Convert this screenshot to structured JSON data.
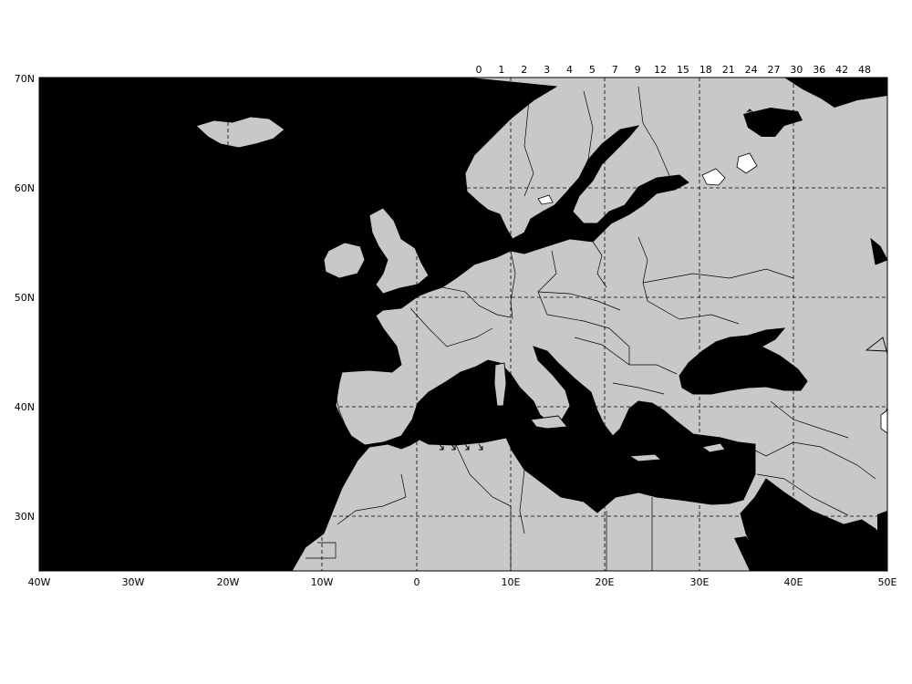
{
  "map": {
    "lat_labels": [
      "70N",
      "60N",
      "50N",
      "40N",
      "30N"
    ],
    "lon_labels": [
      "40W",
      "30W",
      "20W",
      "10W",
      "0",
      "10E",
      "20E",
      "30E",
      "40E",
      "50E"
    ],
    "scale_labels": [
      "0",
      "1",
      "2",
      "3",
      "4",
      "5",
      "7",
      "9",
      "12",
      "15",
      "18",
      "21",
      "24",
      "27",
      "30",
      "36",
      "42",
      "48"
    ],
    "colors": {
      "ocean": "#000000",
      "land": "#c8c8c8",
      "lake": "#ffffff",
      "background": "#ffffff"
    }
  }
}
